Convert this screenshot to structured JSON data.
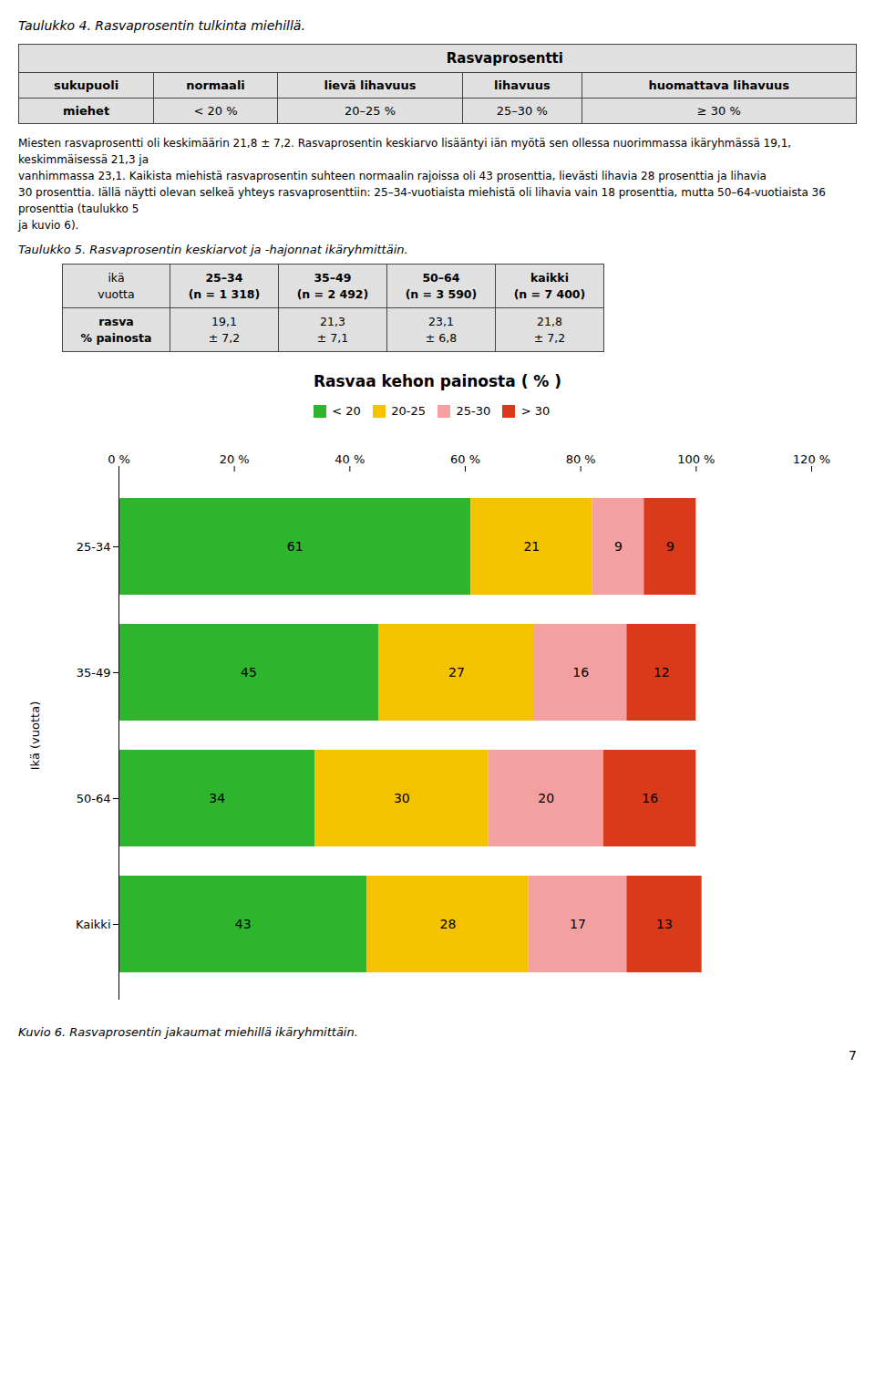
{
  "page": {
    "title": "Taulukko 4. Rasvaprosentin tulkinta miehillä.",
    "table1": {
      "header": "Rasvaprosentti",
      "columns": [
        "sukupuoli",
        "normaali",
        "lievä lihavuus",
        "lihavuus",
        "huomattava lihavuus"
      ],
      "rows": [
        [
          "miehet",
          "< 20 %",
          "20–25 %",
          "25–30 %",
          "≥ 30 %"
        ]
      ]
    },
    "body_text": [
      "Miesten rasvaprosentti oli keskimäärin 21,8 ± 7,2. Rasvaprosentin keskiarvo lisääntyi iän myötä sen ollessa nuorimmassa ikäryhmässä 19,1, keskimmäisessä 21,3 ja",
      "vanhimmassa 23,1. Kaikista miehistä rasvaprosentin suhteen normaalin rajoissa oli 43 prosenttia,       lievästi       lihavia      28       prosenttia       ja       lihavia",
      "30 prosenttia. Iällä näytti olevan selkeä yhteys rasvaprosenttiin: 25–34-vuotiaista miehistä oli lihavia vain 18 prosenttia, mutta 50–64-vuotiaista 36 prosenttia (taulukko 5",
      "ja kuvio 6)."
    ],
    "table2_caption": "Taulukko 5. Rasvaprosentin keskiarvot ja -hajonnat ikäryhmittäin.",
    "table2": {
      "columns": [
        "ikä\nvuotta",
        "25–34\n(n = 1 318)",
        "35–49\n(n = 2 492)",
        "50–64\n(n = 3 590)",
        "kaikki\n(n = 7 400)"
      ],
      "rows": [
        [
          "rasva\n% painosta",
          "19,1\n± 7,2",
          "21,3\n± 7,1",
          "23,1\n± 6,8",
          "21,8\n± 7,2"
        ]
      ]
    },
    "figure_caption": "Kuvio 6. Rasvaprosentin jakaumat miehillä ikäryhmittäin.",
    "page_number": "7"
  },
  "chart_data": {
    "type": "bar",
    "orientation": "horizontal",
    "stacked": true,
    "title": "Rasvaa kehon painosta ( % )",
    "y_label": "Ikä (vuotta)",
    "categories": [
      "25-34",
      "35-49",
      "50-64",
      "Kaikki"
    ],
    "series": [
      {
        "name": "< 20",
        "color": "#2db52d",
        "values": [
          61,
          45,
          34,
          43
        ]
      },
      {
        "name": "20-25",
        "color": "#f5c200",
        "values": [
          21,
          27,
          30,
          28
        ]
      },
      {
        "name": "25-30",
        "color": "#f5a0a0",
        "values": [
          9,
          16,
          20,
          17
        ]
      },
      {
        "name": "> 30",
        "color": "#d93a1a",
        "values": [
          9,
          12,
          16,
          13
        ]
      }
    ],
    "xlim": [
      0,
      120
    ],
    "xticks": [
      {
        "value": 0,
        "label": "0 %"
      },
      {
        "value": 20,
        "label": "20 %"
      },
      {
        "value": 40,
        "label": "40 %"
      },
      {
        "value": 60,
        "label": "60 %"
      },
      {
        "value": 80,
        "label": "80 %"
      },
      {
        "value": 100,
        "label": "100 %"
      },
      {
        "value": 120,
        "label": "120 %"
      }
    ],
    "data_labels": true,
    "legend": "top",
    "grid": false
  }
}
